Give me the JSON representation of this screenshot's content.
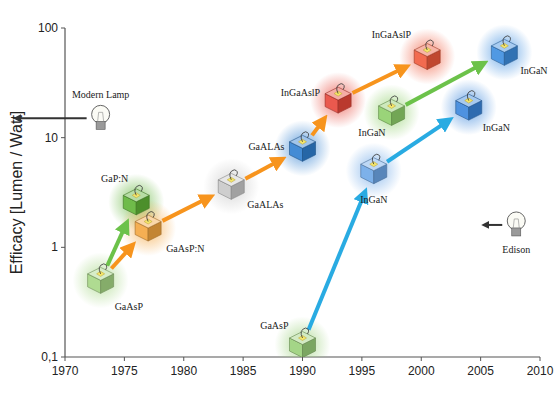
{
  "chart_data": {
    "type": "scatter",
    "y_label": "Efficacy [Lumen / Watt]",
    "log": "y",
    "grid": false,
    "xlim": [
      1970,
      2010
    ],
    "xticks": [
      1970,
      1975,
      1980,
      1985,
      1990,
      1995,
      2000,
      2005,
      2010
    ],
    "ylim": [
      0.1,
      100
    ],
    "yticks": [
      {
        "value": 0.1,
        "label": "0,1"
      },
      1,
      10,
      100
    ],
    "x": [
      1973,
      1976,
      1977,
      1984,
      1990,
      1993,
      2000.5,
      1997.5,
      2007,
      2004,
      1996,
      1990
    ],
    "values": [
      0.5,
      2.6,
      1.5,
      3.6,
      8,
      22,
      55,
      17,
      60,
      19,
      5,
      0.13
    ],
    "labels": [
      "GaAsP",
      "GaP:N",
      "GaAsP:N",
      "GaALAs",
      "GaALAs",
      "InGaAslP",
      "InGaAslP",
      "InGaN",
      "InGaN",
      "InGaN",
      "InGaN",
      "GaAsP"
    ],
    "colors": [
      "#a6d785",
      "#5fb336",
      "#f4a640",
      "#c9c9c9",
      "#2f7fd0",
      "#e8473a",
      "#f05a3c",
      "#8fcf6a",
      "#3d8ee0",
      "#3a86dc",
      "#6ea8e8",
      "#9ad07a"
    ],
    "links": [
      {
        "from": 0,
        "to": 1,
        "color": "#6cc24a"
      },
      {
        "from": 0,
        "to": 2,
        "color": "#f7941d"
      },
      {
        "from": 2,
        "to": 3,
        "color": "#f7941d"
      },
      {
        "from": 3,
        "to": 4,
        "color": "#f7941d"
      },
      {
        "from": 4,
        "to": 5,
        "color": "#f7941d"
      },
      {
        "from": 5,
        "to": 6,
        "color": "#f7941d"
      },
      {
        "from": 7,
        "to": 8,
        "color": "#6cc24a"
      },
      {
        "from": 11,
        "to": 10,
        "color": "#29abe2"
      },
      {
        "from": 10,
        "to": 9,
        "color": "#29abe2"
      }
    ],
    "annotations": [
      {
        "text": "Modern Lamp",
        "x": 1973,
        "y": 15
      },
      {
        "text": "Edison",
        "x": 2008,
        "y": 1.6
      }
    ]
  }
}
